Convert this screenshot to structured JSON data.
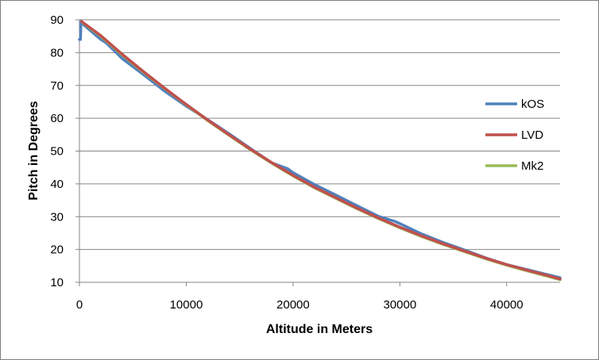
{
  "chart_data": {
    "type": "line",
    "title": "",
    "xlabel": "Altitude in Meters",
    "ylabel": "Pitch in Degrees",
    "xlim": [
      0,
      45000
    ],
    "ylim": [
      10,
      90
    ],
    "xticks": [
      0,
      10000,
      20000,
      30000,
      40000
    ],
    "yticks": [
      10,
      20,
      30,
      40,
      50,
      60,
      70,
      80,
      90
    ],
    "grid": "horizontal",
    "legend": "right",
    "colors": {
      "kOS": "#4f81bd",
      "LVD": "#c0504d",
      "Mk2": "#9bbb59"
    },
    "series": [
      {
        "name": "kOS",
        "x": [
          0,
          100,
          150,
          200,
          2000,
          2500,
          4000,
          6000,
          8000,
          10000,
          12000,
          14000,
          16000,
          18000,
          19500,
          20000,
          22000,
          24000,
          26000,
          28000,
          29500,
          30000,
          32000,
          34000,
          36000,
          38000,
          40000,
          42000,
          44000,
          45000
        ],
        "y": [
          84,
          84,
          89.5,
          89,
          84,
          83,
          78.2,
          73.3,
          68.2,
          63.7,
          59.6,
          55.3,
          50.8,
          46.4,
          44.6,
          43.4,
          39.8,
          36.6,
          33.3,
          30.1,
          28.6,
          27.9,
          24.8,
          22.2,
          19.9,
          17.5,
          15.4,
          13.8,
          12.2,
          11.4
        ]
      },
      {
        "name": "LVD",
        "x": [
          200,
          2000,
          4000,
          6000,
          8000,
          10000,
          12000,
          14000,
          16000,
          18000,
          20000,
          22000,
          24000,
          26000,
          28000,
          30000,
          32000,
          34000,
          36000,
          38000,
          40000,
          42000,
          44000,
          45000
        ],
        "y": [
          89.5,
          85.2,
          79.5,
          74.2,
          69.1,
          64.2,
          59.5,
          55.0,
          50.6,
          46.5,
          42.6,
          39.0,
          35.8,
          32.6,
          29.6,
          26.8,
          24.2,
          21.8,
          19.6,
          17.4,
          15.4,
          13.6,
          11.9,
          11.0
        ]
      },
      {
        "name": "Mk2",
        "x": [
          200,
          2000,
          4000,
          6000,
          8000,
          10000,
          12000,
          14000,
          16000,
          18000,
          20000,
          22000,
          24000,
          26000,
          28000,
          30000,
          32000,
          34000,
          36000,
          38000,
          40000,
          42000,
          44000,
          45000
        ],
        "y": [
          89.4,
          85.0,
          79.3,
          74.0,
          69.0,
          64.1,
          59.3,
          54.8,
          50.4,
          46.3,
          42.4,
          38.8,
          35.6,
          32.4,
          29.4,
          26.6,
          24.0,
          21.6,
          19.4,
          17.2,
          15.2,
          13.4,
          11.7,
          10.8
        ]
      }
    ]
  }
}
